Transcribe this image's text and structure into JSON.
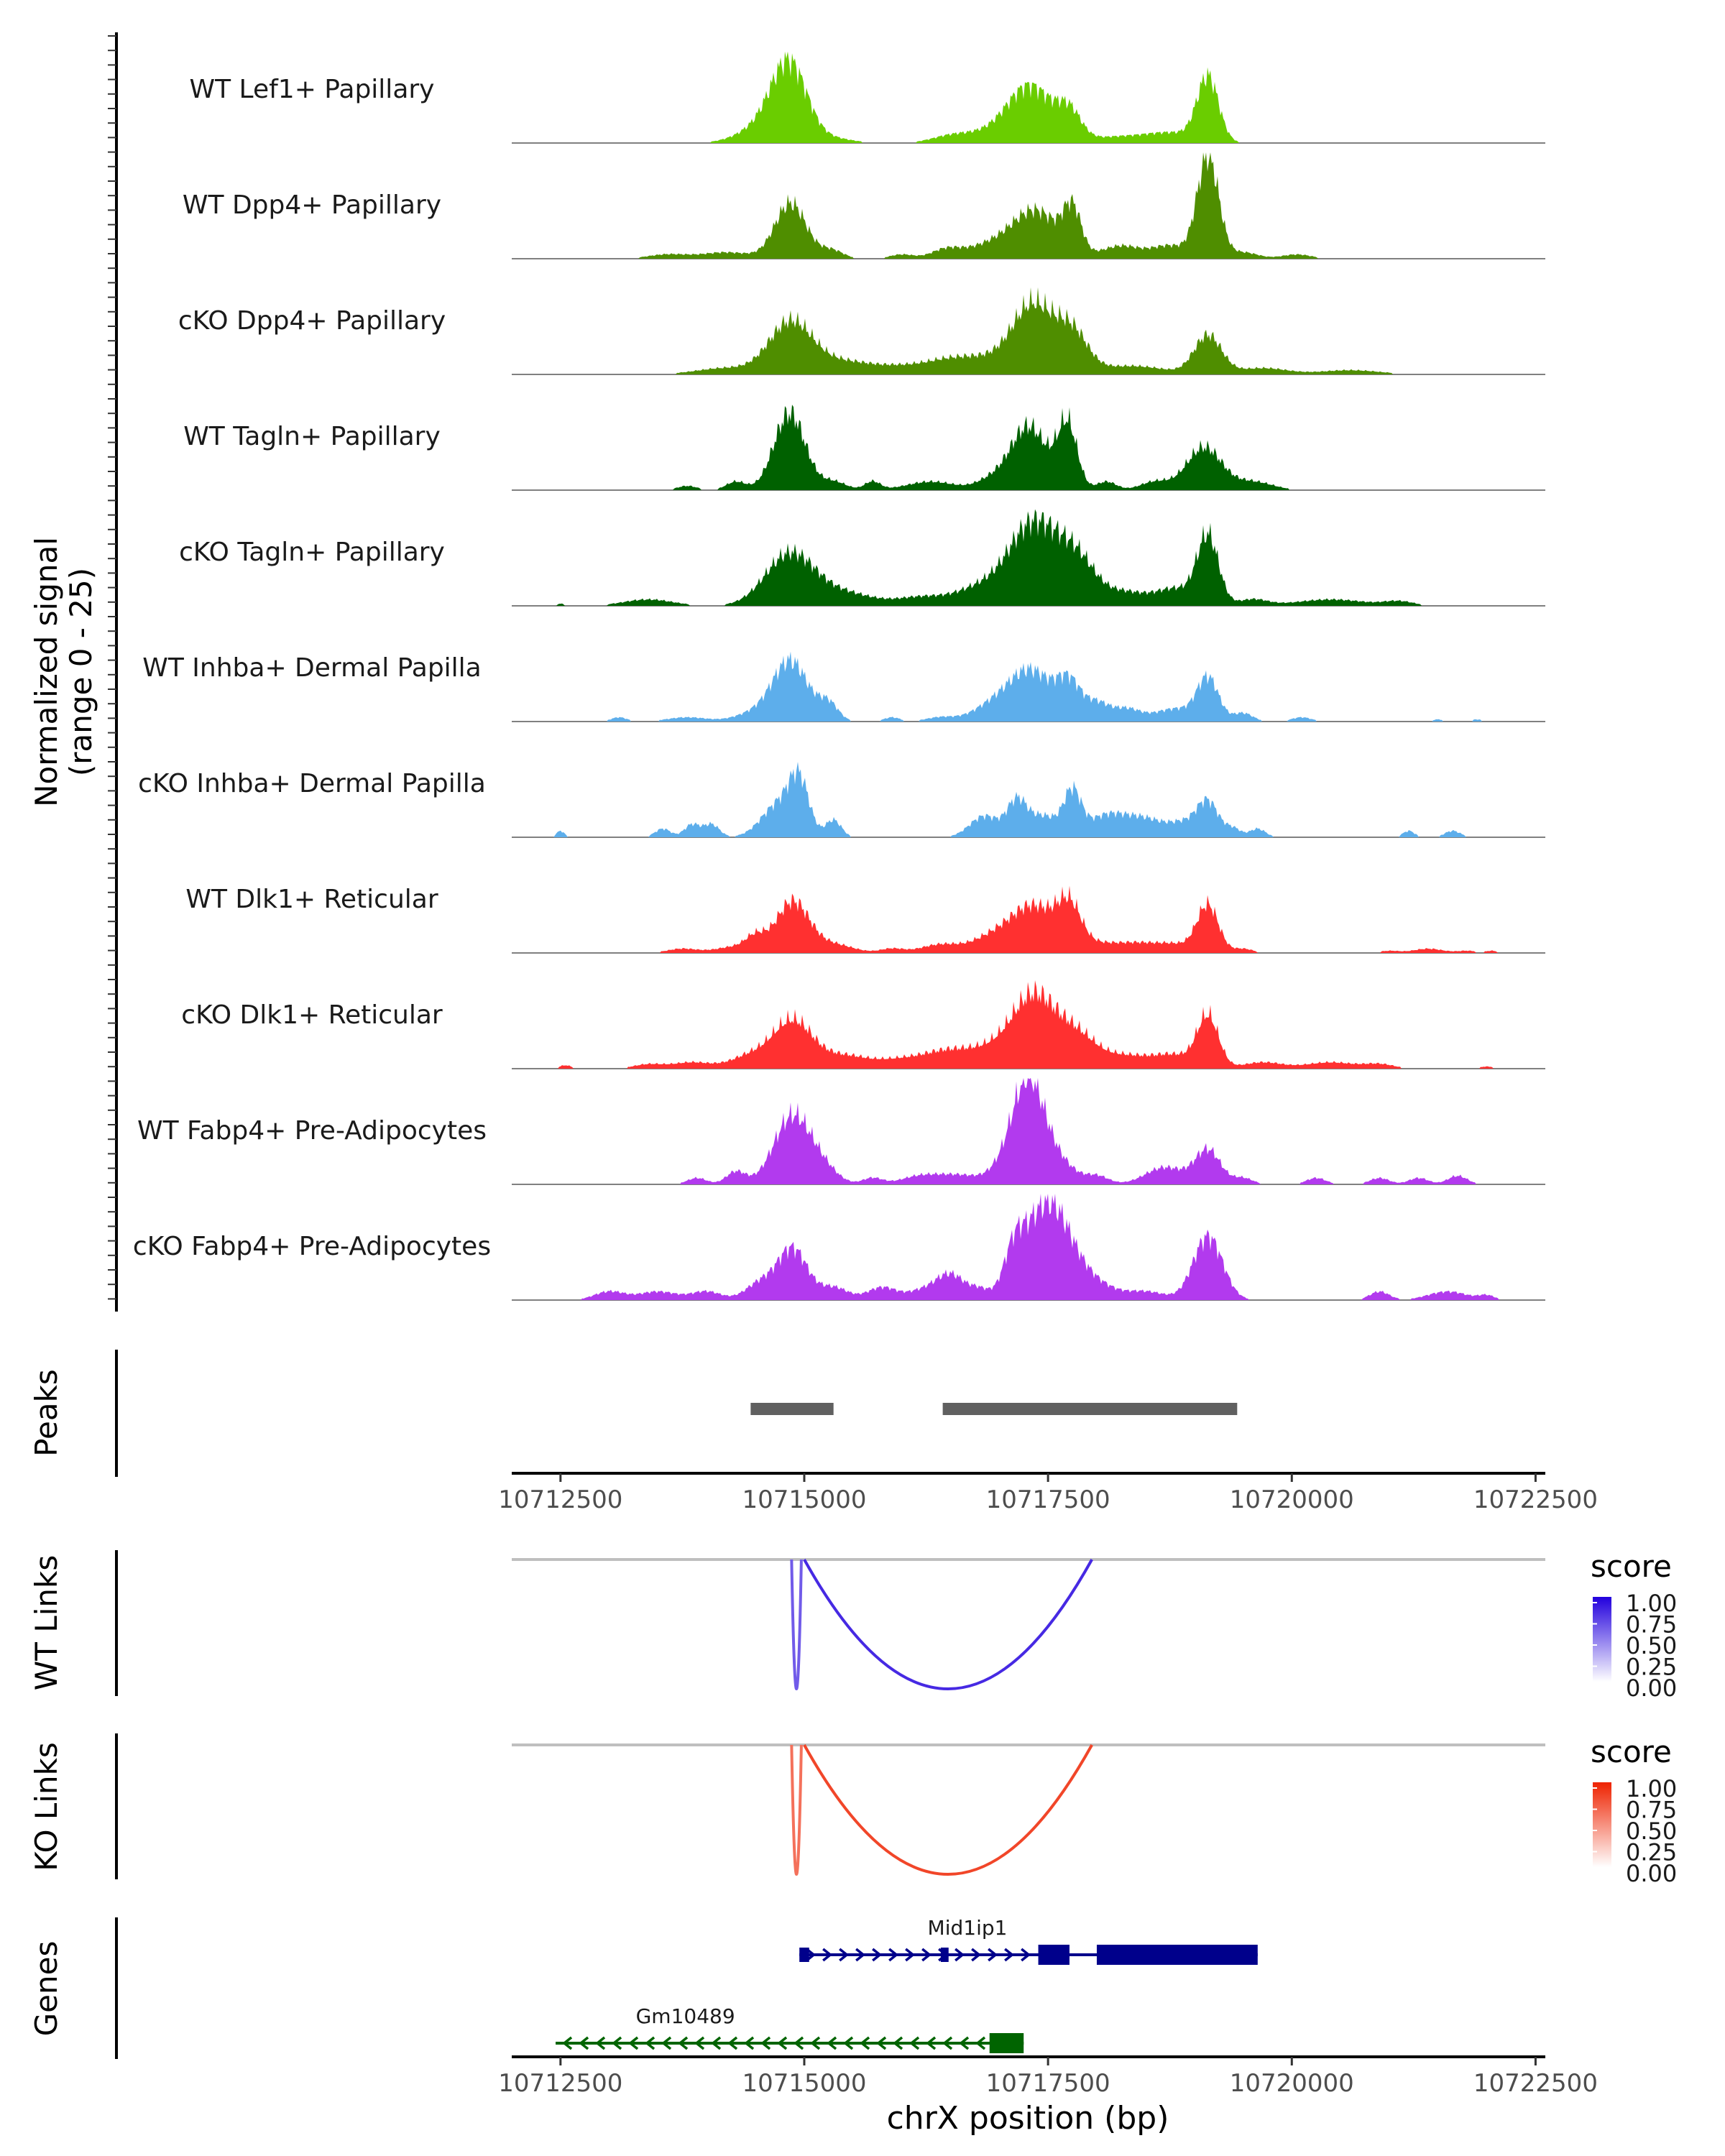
{
  "chart_data": {
    "type": "area",
    "region": "chrX",
    "xlim": [
      10712000,
      10722600
    ],
    "ylim": [
      0,
      25
    ],
    "coverage_axis_label_line1": "Normalized signal",
    "coverage_axis_label_line2": "(range 0 - 25)",
    "tracks": [
      {
        "name": "WT Lef1+ Papillary",
        "color": "#6ACD00",
        "peaks": [
          [
            10714850,
            17,
            180
          ],
          [
            10714600,
            4,
            250
          ],
          [
            10715300,
            1,
            200
          ],
          [
            10716500,
            1.5,
            200
          ],
          [
            10716900,
            2,
            250
          ],
          [
            10717320,
            13,
            230
          ],
          [
            10717720,
            6,
            120
          ],
          [
            10718250,
            1.5,
            350
          ],
          [
            10719140,
            15,
            110
          ],
          [
            10718800,
            2,
            250
          ]
        ]
      },
      {
        "name": "WT Dpp4+ Papillary",
        "color": "#4F8E00",
        "peaks": [
          [
            10713600,
            1,
            200
          ],
          [
            10714200,
            1.5,
            250
          ],
          [
            10714860,
            13,
            160
          ],
          [
            10715280,
            2,
            120
          ],
          [
            10716000,
            1,
            120
          ],
          [
            10716450,
            2,
            150
          ],
          [
            10716900,
            3,
            250
          ],
          [
            10717380,
            11,
            240
          ],
          [
            10717750,
            10,
            90
          ],
          [
            10718250,
            3,
            200
          ],
          [
            10718750,
            3,
            180
          ],
          [
            10719140,
            24,
            110
          ],
          [
            10719500,
            1.5,
            150
          ],
          [
            10720050,
            1,
            150
          ]
        ]
      },
      {
        "name": "cKO Dpp4+ Papillary",
        "color": "#4F8E00",
        "peaks": [
          [
            10714200,
            1.5,
            300
          ],
          [
            10714860,
            12,
            220
          ],
          [
            10715400,
            3,
            300
          ],
          [
            10716000,
            1.5,
            250
          ],
          [
            10716480,
            3,
            250
          ],
          [
            10716900,
            3,
            250
          ],
          [
            10717350,
            16,
            210
          ],
          [
            10717750,
            9,
            160
          ],
          [
            10718350,
            2,
            350
          ],
          [
            10719140,
            9,
            140
          ],
          [
            10719700,
            1.5,
            250
          ],
          [
            10720600,
            1,
            300
          ]
        ]
      },
      {
        "name": "WT Tagln+ Papillary",
        "color": "#006100",
        "peaks": [
          [
            10713800,
            1,
            100
          ],
          [
            10714300,
            2,
            100
          ],
          [
            10714850,
            18,
            160
          ],
          [
            10715300,
            2,
            130
          ],
          [
            10715700,
            2,
            80
          ],
          [
            10716300,
            2,
            250
          ],
          [
            10716900,
            2,
            150
          ],
          [
            10717300,
            15,
            190
          ],
          [
            10717700,
            15,
            100
          ],
          [
            10718100,
            2,
            100
          ],
          [
            10718600,
            2,
            150
          ],
          [
            10719100,
            10,
            180
          ],
          [
            10719600,
            2,
            200
          ]
        ]
      },
      {
        "name": "cKO Tagln+ Papillary",
        "color": "#006100",
        "peaks": [
          [
            10712500,
            0.5,
            40
          ],
          [
            10713400,
            1.5,
            250
          ],
          [
            10714850,
            12,
            250
          ],
          [
            10715400,
            3,
            300
          ],
          [
            10716200,
            2,
            250
          ],
          [
            10716800,
            4,
            250
          ],
          [
            10717350,
            19,
            250
          ],
          [
            10717800,
            10,
            200
          ],
          [
            10718300,
            3,
            200
          ],
          [
            10718800,
            4,
            200
          ],
          [
            10719140,
            16,
            110
          ],
          [
            10719600,
            1.5,
            150
          ],
          [
            10720400,
            1.5,
            350
          ],
          [
            10721100,
            1,
            150
          ]
        ]
      },
      {
        "name": "WT Inhba+ Dermal Papilla",
        "color": "#5DAEEB",
        "peaks": [
          [
            10713100,
            1,
            80
          ],
          [
            10713800,
            1,
            200
          ],
          [
            10714500,
            2,
            200
          ],
          [
            10714860,
            14,
            180
          ],
          [
            10715250,
            4,
            100
          ],
          [
            10715900,
            1,
            80
          ],
          [
            10716400,
            1,
            150
          ],
          [
            10716900,
            3,
            200
          ],
          [
            10717320,
            12,
            230
          ],
          [
            10717720,
            8,
            120
          ],
          [
            10718000,
            4,
            120
          ],
          [
            10718300,
            3,
            150
          ],
          [
            10718800,
            3,
            200
          ],
          [
            10719140,
            10,
            110
          ],
          [
            10719500,
            2,
            100
          ],
          [
            10720100,
            1,
            100
          ],
          [
            10721500,
            0.5,
            60
          ],
          [
            10721900,
            0.5,
            60
          ]
        ]
      },
      {
        "name": "cKO Inhba+ Dermal Papilla",
        "color": "#5DAEEB",
        "peaks": [
          [
            10712500,
            1.5,
            40
          ],
          [
            10713550,
            2,
            80
          ],
          [
            10713850,
            3,
            80
          ],
          [
            10714050,
            3,
            80
          ],
          [
            10714750,
            8,
            180
          ],
          [
            10714950,
            11,
            100
          ],
          [
            10715300,
            4,
            80
          ],
          [
            10716850,
            5,
            150
          ],
          [
            10717180,
            8,
            100
          ],
          [
            10717450,
            5,
            150
          ],
          [
            10717750,
            10,
            90
          ],
          [
            10718100,
            5,
            200
          ],
          [
            10718500,
            4,
            200
          ],
          [
            10718900,
            3,
            150
          ],
          [
            10719140,
            8,
            110
          ],
          [
            10719400,
            2,
            80
          ],
          [
            10719650,
            2,
            80
          ],
          [
            10721200,
            1.5,
            60
          ],
          [
            10721650,
            1.5,
            80
          ]
        ]
      },
      {
        "name": "WT Dlk1+ Reticular",
        "color": "#FF3030",
        "peaks": [
          [
            10713750,
            1,
            150
          ],
          [
            10714300,
            1.5,
            200
          ],
          [
            10714500,
            3,
            100
          ],
          [
            10714880,
            12,
            170
          ],
          [
            10715300,
            2,
            200
          ],
          [
            10715900,
            1,
            120
          ],
          [
            10716400,
            2,
            200
          ],
          [
            10716900,
            3,
            200
          ],
          [
            10717350,
            11,
            240
          ],
          [
            10717720,
            9,
            120
          ],
          [
            10718000,
            2,
            200
          ],
          [
            10718400,
            2,
            200
          ],
          [
            10718800,
            2,
            200
          ],
          [
            10719140,
            11,
            110
          ],
          [
            10719500,
            1,
            100
          ],
          [
            10721000,
            0.5,
            100
          ],
          [
            10721400,
            1,
            150
          ],
          [
            10721800,
            0.5,
            100
          ],
          [
            10722050,
            0.5,
            60
          ]
        ]
      },
      {
        "name": "cKO Dlk1+ Reticular",
        "color": "#FF3030",
        "peaks": [
          [
            10712550,
            0.8,
            60
          ],
          [
            10713400,
            1,
            150
          ],
          [
            10713850,
            1.5,
            200
          ],
          [
            10714450,
            3,
            200
          ],
          [
            10714880,
            11,
            200
          ],
          [
            10715400,
            3,
            250
          ],
          [
            10716000,
            2,
            250
          ],
          [
            10716500,
            4,
            250
          ],
          [
            10716900,
            3,
            200
          ],
          [
            10717350,
            17,
            230
          ],
          [
            10717800,
            7,
            200
          ],
          [
            10718300,
            3,
            250
          ],
          [
            10718800,
            3,
            200
          ],
          [
            10719140,
            12,
            110
          ],
          [
            10719700,
            1.5,
            200
          ],
          [
            10720400,
            1.5,
            250
          ],
          [
            10720900,
            1,
            150
          ],
          [
            10722000,
            0.5,
            80
          ]
        ]
      },
      {
        "name": "WT Fabp4+ Pre-Adipocytes",
        "color": "#B23AEE",
        "peaks": [
          [
            10713900,
            1.5,
            100
          ],
          [
            10714300,
            3,
            100
          ],
          [
            10714880,
            16,
            190
          ],
          [
            10715200,
            3,
            150
          ],
          [
            10715700,
            1.5,
            100
          ],
          [
            10716200,
            2,
            200
          ],
          [
            10716600,
            2,
            200
          ],
          [
            10717000,
            2,
            150
          ],
          [
            10717300,
            25,
            170
          ],
          [
            10717650,
            4,
            150
          ],
          [
            10718000,
            2,
            120
          ],
          [
            10718700,
            4,
            200
          ],
          [
            10719140,
            8,
            130
          ],
          [
            10719500,
            1.5,
            100
          ],
          [
            10720250,
            1.5,
            100
          ],
          [
            10720900,
            1.5,
            100
          ],
          [
            10721300,
            1.5,
            100
          ],
          [
            10721700,
            2,
            100
          ]
        ]
      },
      {
        "name": "cKO Fabp4+ Pre-Adipocytes",
        "color": "#B23AEE",
        "peaks": [
          [
            10713000,
            2,
            150
          ],
          [
            10713500,
            2,
            200
          ],
          [
            10714000,
            2,
            150
          ],
          [
            10714550,
            4,
            150
          ],
          [
            10714880,
            12,
            150
          ],
          [
            10715300,
            3,
            150
          ],
          [
            10715800,
            3,
            150
          ],
          [
            10716200,
            2,
            150
          ],
          [
            10716500,
            6,
            150
          ],
          [
            10716800,
            2,
            100
          ],
          [
            10717150,
            8,
            100
          ],
          [
            10717500,
            23,
            240
          ],
          [
            10718000,
            3,
            200
          ],
          [
            10718500,
            2,
            200
          ],
          [
            10719140,
            15,
            150
          ],
          [
            10720900,
            2,
            100
          ],
          [
            10721600,
            2,
            200
          ],
          [
            10722000,
            1,
            80
          ]
        ]
      }
    ],
    "peaks_track": {
      "label": "Peaks",
      "ranges": [
        [
          10714450,
          10715300
        ],
        [
          10716420,
          10719440
        ]
      ],
      "color": "#606060"
    },
    "position_axis": {
      "ticks": [
        10712500,
        10715000,
        10717500,
        10720000,
        10722500
      ],
      "tick_labels": [
        "10712500",
        "10715000",
        "10717500",
        "10720000",
        "10722500"
      ]
    },
    "link_tracks": [
      {
        "label": "WT Links",
        "legend_title": "score",
        "legend_color": "#2200DD",
        "legend_ticks": [
          "1.00",
          "0.75",
          "0.50",
          "0.25",
          "0.00"
        ],
        "links": [
          {
            "start": 10714870,
            "end": 10714970,
            "score": 0.45
          },
          {
            "start": 10715000,
            "end": 10717950,
            "score": 0.75
          }
        ]
      },
      {
        "label": "KO Links",
        "legend_title": "score",
        "legend_color": "#EE2200",
        "legend_ticks": [
          "1.00",
          "0.75",
          "0.50",
          "0.25",
          "0.00"
        ],
        "links": [
          {
            "start": 10714870,
            "end": 10714970,
            "score": 0.45
          },
          {
            "start": 10715000,
            "end": 10717950,
            "score": 0.75
          }
        ]
      }
    ],
    "genes_track": {
      "label": "Genes",
      "genes": [
        {
          "name": "Mid1ip1",
          "strand": "+",
          "color": "#00008B",
          "start": 10714950,
          "end": 10719650,
          "exons": [
            [
              10714950,
              10715050
            ],
            [
              10716400,
              10716480
            ],
            [
              10717400,
              10717720
            ],
            [
              10718000,
              10719650
            ]
          ],
          "thick": [
            [
              10717400,
              10717720
            ],
            [
              10718000,
              10719650
            ]
          ]
        },
        {
          "name": "Gm10489",
          "strand": "-",
          "color": "#006400",
          "start": 10712450,
          "end": 10717250,
          "exons": [
            [
              10716900,
              10717250
            ]
          ],
          "thick": [
            [
              10716900,
              10717250
            ]
          ]
        }
      ]
    },
    "xlabel": "chrX position (bp)"
  }
}
